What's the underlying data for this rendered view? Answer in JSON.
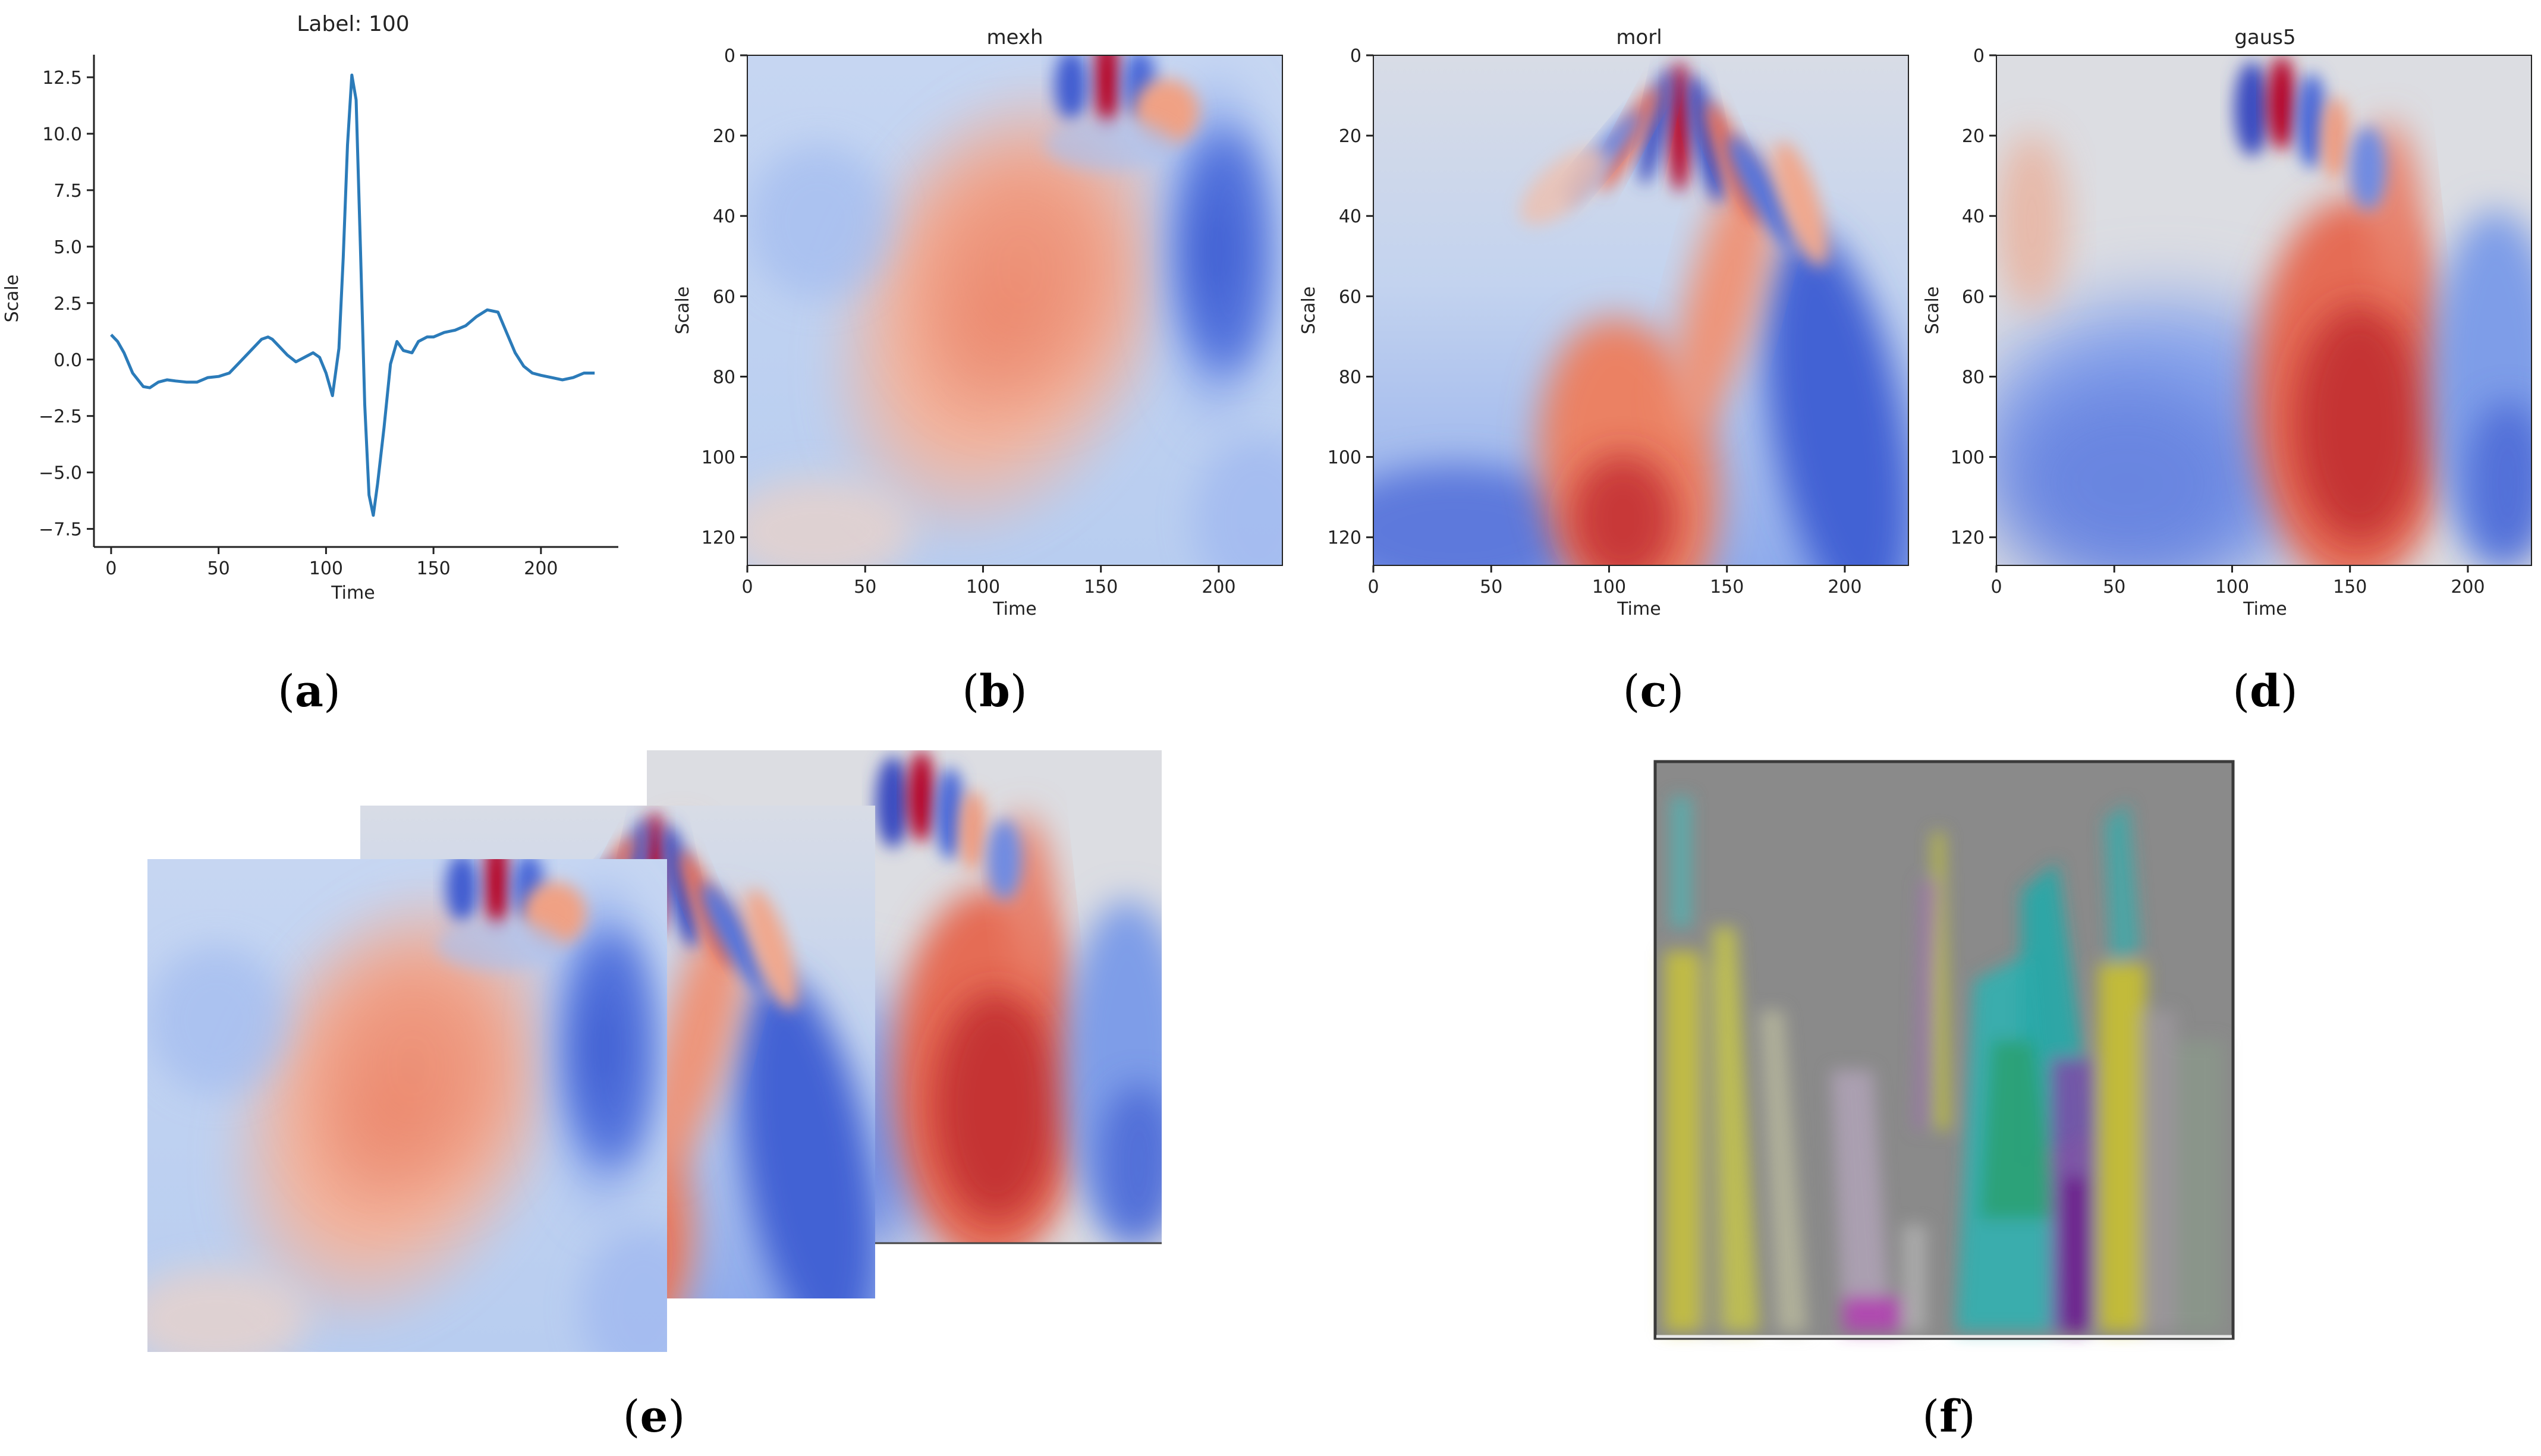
{
  "chart_data": [
    {
      "id": "a",
      "type": "line",
      "title": "Label: 100",
      "xlabel": "Time",
      "ylabel": "Scale",
      "xlim": [
        -8,
        236
      ],
      "ylim": [
        -8.3,
        13.5
      ],
      "xticks": [
        0,
        50,
        100,
        150,
        200
      ],
      "yticks": [
        12.5,
        10.0,
        7.5,
        5.0,
        2.5,
        0.0,
        -2.5,
        -5.0,
        -7.5
      ],
      "ytick_labels": [
        "12.5",
        "10.0",
        "7.5",
        "5.0",
        "2.5",
        "0.0",
        "−2.5",
        "−5.0",
        "−7.5"
      ],
      "line_color": "#2b7bb9",
      "series": [
        {
          "x": [
            0,
            3,
            6,
            10,
            15,
            18,
            22,
            26,
            30,
            35,
            40,
            45,
            50,
            55,
            60,
            65,
            70,
            73,
            75,
            78,
            82,
            86,
            90,
            94,
            97,
            100,
            103,
            106,
            108,
            110,
            112,
            114,
            116,
            118,
            120,
            122,
            124,
            127,
            130,
            133,
            136,
            140,
            143,
            147,
            150,
            155,
            160,
            165,
            170,
            175,
            180,
            184,
            188,
            192,
            196,
            200,
            205,
            210,
            215,
            220,
            225
          ],
          "y": [
            1.1,
            0.8,
            0.3,
            -0.6,
            -1.2,
            -1.25,
            -1.0,
            -0.9,
            -0.95,
            -1.0,
            -1.0,
            -0.8,
            -0.75,
            -0.6,
            -0.1,
            0.4,
            0.9,
            1.0,
            0.9,
            0.6,
            0.2,
            -0.1,
            0.1,
            0.3,
            0.1,
            -0.6,
            -1.6,
            0.5,
            4.5,
            9.5,
            12.6,
            11.5,
            5.0,
            -2.0,
            -6.0,
            -6.9,
            -5.5,
            -3.0,
            -0.2,
            0.8,
            0.4,
            0.3,
            0.8,
            1.0,
            1.0,
            1.2,
            1.3,
            1.5,
            1.9,
            2.2,
            2.1,
            1.2,
            0.3,
            -0.3,
            -0.6,
            -0.7,
            -0.8,
            -0.9,
            -0.8,
            -0.6,
            -0.6
          ]
        }
      ]
    },
    {
      "id": "b",
      "type": "heatmap",
      "title": "mexh",
      "xlabel": "Time",
      "ylabel": "Scale",
      "xticks": [
        0,
        50,
        100,
        150,
        200
      ],
      "yticks": [
        0,
        20,
        40,
        60,
        80,
        100,
        120
      ],
      "xlim": [
        0,
        227
      ],
      "ylim": [
        127,
        0
      ],
      "colormap": "coolwarm"
    },
    {
      "id": "c",
      "type": "heatmap",
      "title": "morl",
      "xlabel": "Time",
      "ylabel": "Scale",
      "xticks": [
        0,
        50,
        100,
        150,
        200
      ],
      "yticks": [
        0,
        20,
        40,
        60,
        80,
        100,
        120
      ],
      "xlim": [
        0,
        227
      ],
      "ylim": [
        127,
        0
      ],
      "colormap": "coolwarm"
    },
    {
      "id": "d",
      "type": "heatmap",
      "title": "gaus5",
      "xlabel": "Time",
      "ylabel": "Scale",
      "xticks": [
        0,
        50,
        100,
        150,
        200
      ],
      "yticks": [
        0,
        20,
        40,
        60,
        80,
        100,
        120
      ],
      "xlim": [
        0,
        227
      ],
      "ylim": [
        127,
        0
      ],
      "colormap": "coolwarm"
    }
  ],
  "captions": {
    "a": "a",
    "b": "b",
    "c": "c",
    "d": "d",
    "e": "e",
    "f": "f"
  },
  "colors": {
    "cool_blue": "#3b4cc0",
    "neutral": "#dddddd",
    "warm_red": "#b40426",
    "panel_f_gray": "#8a8a8a",
    "panel_f_frame": "#3a3a3a"
  }
}
